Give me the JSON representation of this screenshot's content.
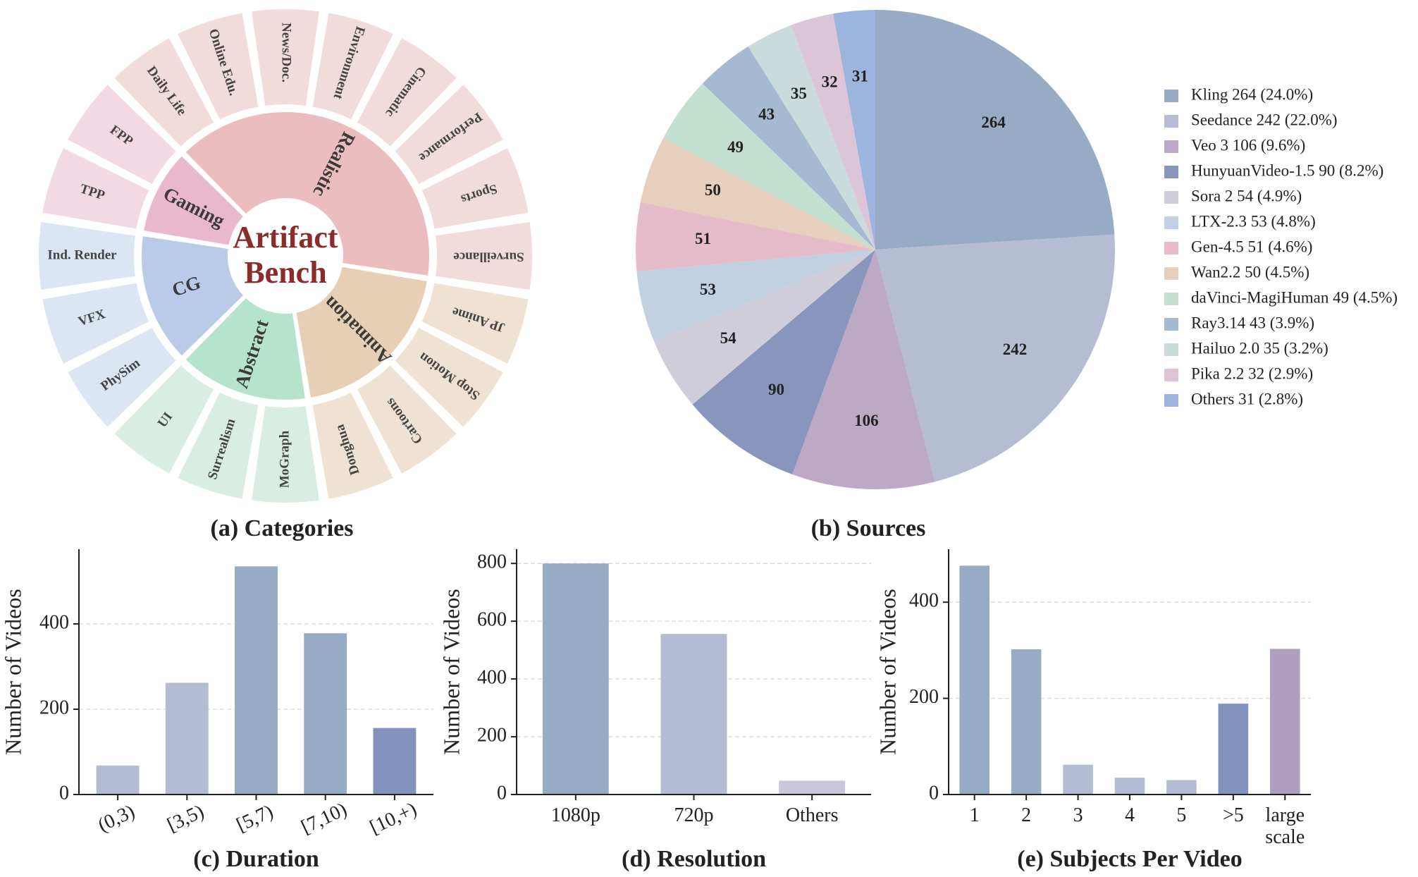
{
  "center_title": [
    "Artifact",
    "Bench"
  ],
  "panel_titles": {
    "a": "(a) Categories",
    "b": "(b) Sources",
    "c": "(c) Duration",
    "d": "(d) Resolution",
    "e": "(e) Subjects Per Video"
  },
  "colors": {
    "title_red": "#8b2b2b",
    "axis": "#222222",
    "grid": "#dddddd"
  },
  "chart_data": [
    {
      "type": "sunburst",
      "title": "(a) Categories",
      "center_label": "Artifact Bench",
      "categories": [
        {
          "name": "Realistic",
          "color": "#ebbdbf",
          "outer_color": "#f2dbdb",
          "children": [
            "Daily Life",
            "Online Edu.",
            "News/Doc.",
            "Environment",
            "Cinematic",
            "Performance",
            "Sports",
            "Surveillance"
          ]
        },
        {
          "name": "Animation",
          "color": "#e6cfb4",
          "outer_color": "#efe2d2",
          "children": [
            "JP Anime",
            "Stop Motion",
            "Cartoons",
            "Donghua"
          ]
        },
        {
          "name": "Abstract",
          "color": "#b6e3cc",
          "outer_color": "#d8eee2",
          "children": [
            "MoGraph",
            "Surrealism",
            "UI"
          ]
        },
        {
          "name": "CG",
          "color": "#b9cbe8",
          "outer_color": "#dbe5f4",
          "children": [
            "PhySim",
            "VFX",
            "Ind. Render"
          ]
        },
        {
          "name": "Gaming",
          "color": "#eab8cc",
          "outer_color": "#f2d9e3",
          "children": [
            "TPP",
            "FPP"
          ]
        }
      ]
    },
    {
      "type": "pie",
      "title": "(b) Sources",
      "slices": [
        {
          "label": "Kling",
          "value": 264,
          "pct": "24.0%",
          "color": "#98abc5"
        },
        {
          "label": "Seedance",
          "value": 242,
          "pct": "22.0%",
          "color": "#b6bcd2"
        },
        {
          "label": "Veo 3",
          "value": 106,
          "pct": "9.6%",
          "color": "#bba9c6"
        },
        {
          "label": "HunyuanVideo-1.5",
          "value": 90,
          "pct": "8.2%",
          "color": "#8896bd"
        },
        {
          "label": "Sora 2",
          "value": 54,
          "pct": "4.9%",
          "color": "#cfcdda"
        },
        {
          "label": "LTX-2.3",
          "value": 53,
          "pct": "4.8%",
          "color": "#c1d1e1"
        },
        {
          "label": "Gen-4.5",
          "value": 51,
          "pct": "4.6%",
          "color": "#e6bccb"
        },
        {
          "label": "Wan2.2",
          "value": 50,
          "pct": "4.5%",
          "color": "#e6cfbc"
        },
        {
          "label": "daVinci-MagiHuman",
          "value": 49,
          "pct": "4.5%",
          "color": "#c3dfd0"
        },
        {
          "label": "Ray3.14",
          "value": 43,
          "pct": "3.9%",
          "color": "#a5b9d1"
        },
        {
          "label": "Hailuo 2.0",
          "value": 35,
          "pct": "3.2%",
          "color": "#c9dcdb"
        },
        {
          "label": "Pika 2.2",
          "value": 32,
          "pct": "2.9%",
          "color": "#dbc5d6"
        },
        {
          "label": "Others",
          "value": 31,
          "pct": "2.8%",
          "color": "#9db4de"
        }
      ],
      "legend": "right"
    },
    {
      "type": "bar",
      "title": "(c) Duration",
      "ylabel": "Number of Videos",
      "categories": [
        "(0,3)",
        "[3,5)",
        "[5,7)",
        "[7,10)",
        "[10,+)"
      ],
      "values": [
        68,
        262,
        535,
        378,
        156
      ],
      "colors": [
        "#b3bcd3",
        "#b3bcd3",
        "#98abc5",
        "#98abc5",
        "#8393bd"
      ],
      "yticks": [
        0,
        200,
        400
      ],
      "ylim": [
        0,
        562
      ],
      "grid": true
    },
    {
      "type": "bar",
      "title": "(d) Resolution",
      "ylabel": "Number of Videos",
      "categories": [
        "1080p",
        "720p",
        "Others"
      ],
      "values": [
        800,
        556,
        48
      ],
      "colors": [
        "#98abc5",
        "#b3bcd3",
        "#c9c7da"
      ],
      "yticks": [
        0,
        200,
        400,
        600,
        800
      ],
      "ylim": [
        0,
        842
      ],
      "grid": true
    },
    {
      "type": "bar",
      "title": "(e) Subjects Per Video",
      "ylabel": "Number of Videos",
      "categories": [
        "1",
        "2",
        "3",
        "4",
        "5",
        ">5",
        "large scale"
      ],
      "values": [
        476,
        302,
        62,
        35,
        30,
        189,
        303
      ],
      "colors": [
        "#98abc5",
        "#98abc5",
        "#b3bcd3",
        "#b3bcd3",
        "#b3bcd3",
        "#8393bd",
        "#ae9fbf"
      ],
      "yticks": [
        0,
        200,
        400
      ],
      "ylim": [
        0,
        500
      ],
      "grid": true
    }
  ]
}
